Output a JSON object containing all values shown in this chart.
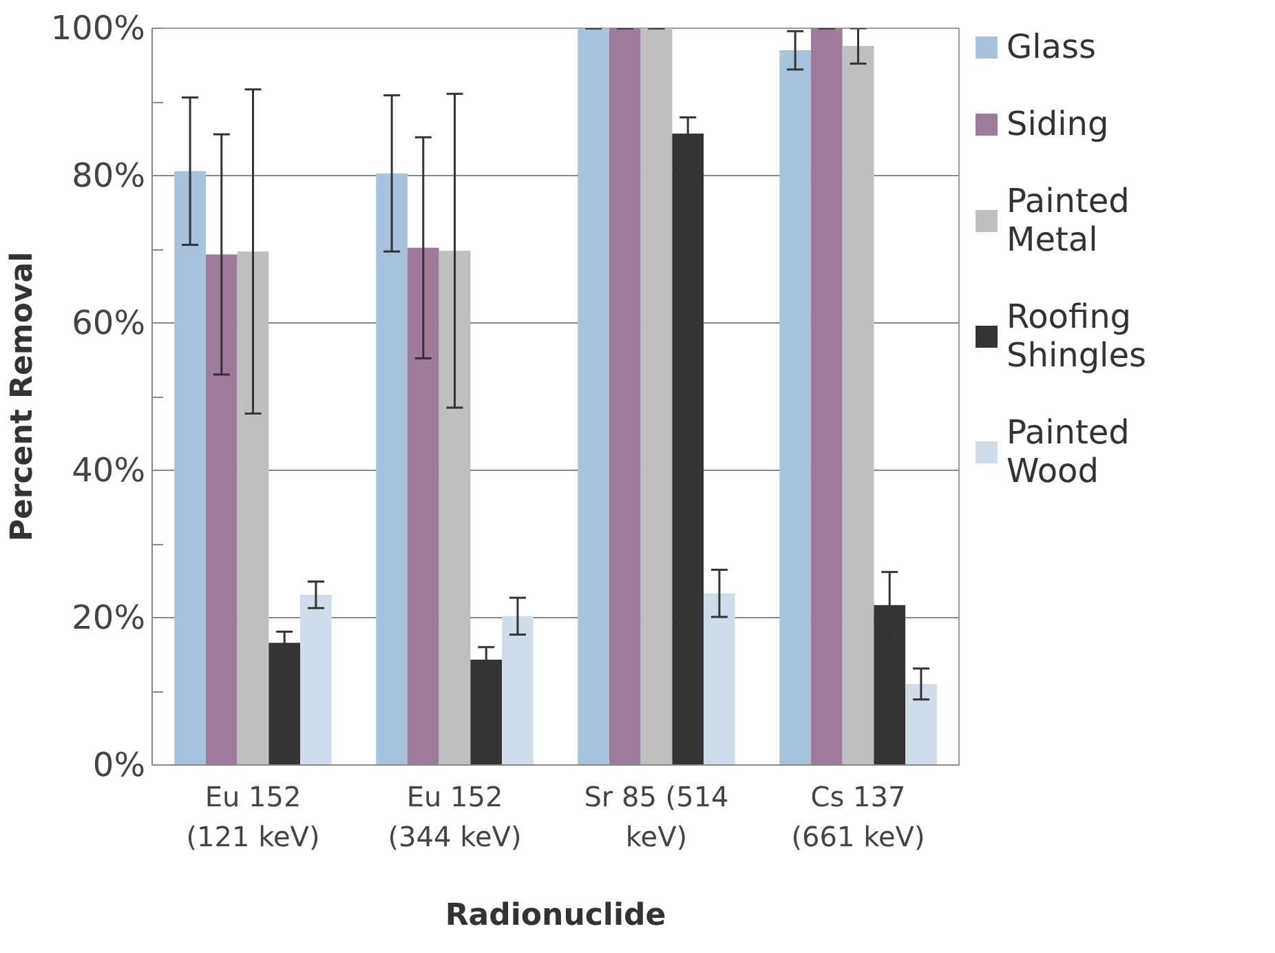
{
  "chart_data": {
    "type": "bar",
    "xlabel": "Radionuclide",
    "ylabel": "Percent Removal",
    "categories": [
      "Eu 152 (121 keV)",
      "Eu 152 (344 keV)",
      "Sr 85 (514 keV)",
      "Cs 137 (661 keV)"
    ],
    "series": [
      {
        "name": "Glass",
        "color": "#a6c2dd",
        "values": [
          80.6,
          80.3,
          100,
          97.0
        ],
        "errors": [
          10,
          10.6,
          0,
          2.6
        ]
      },
      {
        "name": "Siding",
        "color": "#9e7b9b",
        "values": [
          69.3,
          70.2,
          100,
          100
        ],
        "errors": [
          16.3,
          15,
          0,
          0
        ]
      },
      {
        "name": "Painted Metal",
        "color": "#bfbfbf",
        "values": [
          69.7,
          69.8,
          100,
          97.6
        ],
        "errors": [
          22,
          21.3,
          0,
          2.4
        ]
      },
      {
        "name": "Roofing Shingles",
        "color": "#343434",
        "values": [
          16.6,
          14.3,
          85.7,
          21.7
        ],
        "errors": [
          1.5,
          1.7,
          2.2,
          4.5
        ]
      },
      {
        "name": "Painted Wood",
        "color": "#cfdcea",
        "values": [
          23.1,
          20.2,
          23.3,
          11.0
        ],
        "errors": [
          1.8,
          2.5,
          3.2,
          2.1
        ]
      }
    ],
    "ylim": [
      0,
      100
    ],
    "yticks": [
      {
        "value": 0,
        "label": "0%"
      },
      {
        "value": 10,
        "label": null
      },
      {
        "value": 20,
        "label": "20%"
      },
      {
        "value": 30,
        "label": null
      },
      {
        "value": 40,
        "label": "40%"
      },
      {
        "value": 50,
        "label": null
      },
      {
        "value": 60,
        "label": "60%"
      },
      {
        "value": 70,
        "label": null
      },
      {
        "value": 80,
        "label": "80%"
      },
      {
        "value": 90,
        "label": null
      },
      {
        "value": 100,
        "label": "100%"
      }
    ],
    "grid": "y",
    "legend": "right"
  }
}
